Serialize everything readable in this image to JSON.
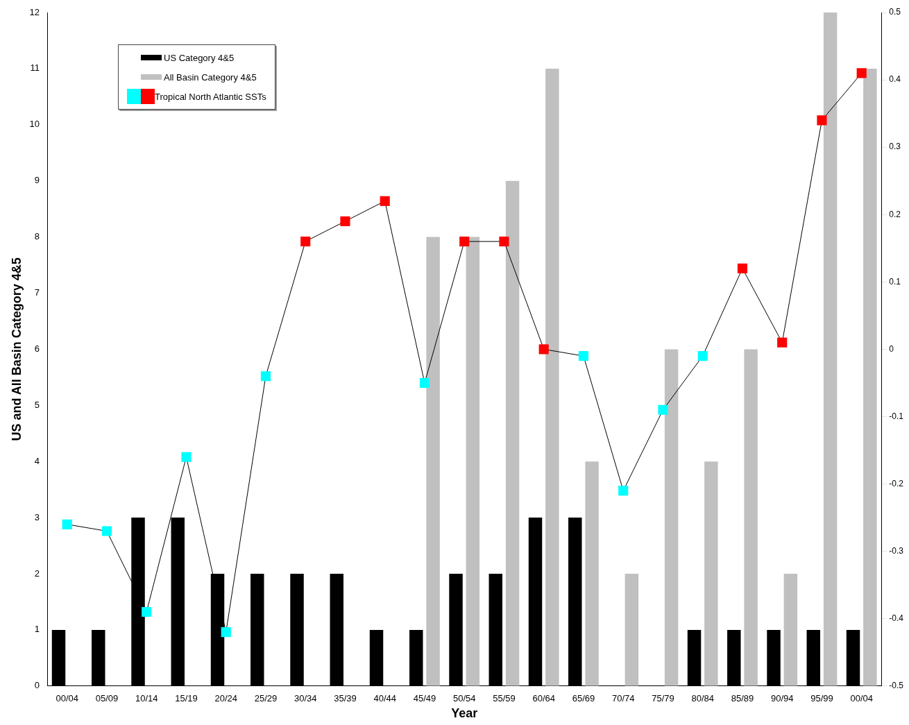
{
  "chart_data": {
    "type": "bar",
    "categories": [
      "00/04",
      "05/09",
      "10/14",
      "15/19",
      "20/24",
      "25/29",
      "30/34",
      "35/39",
      "40/44",
      "45/49",
      "50/54",
      "55/59",
      "60/64",
      "65/69",
      "70/74",
      "75/79",
      "80/84",
      "85/89",
      "90/94",
      "95/99",
      "00/04"
    ],
    "series": [
      {
        "name": "US Category 4&5",
        "color": "#000000",
        "values": [
          1,
          1,
          3,
          3,
          2,
          2,
          2,
          2,
          1,
          1,
          2,
          2,
          3,
          3,
          0,
          0,
          1,
          1,
          1,
          1,
          1
        ]
      },
      {
        "name": "All Basin Category 4&5",
        "color": "#c0c0c0",
        "values": [
          null,
          null,
          null,
          null,
          null,
          null,
          null,
          null,
          null,
          8,
          8,
          9,
          11,
          4,
          2,
          6,
          4,
          6,
          2,
          12,
          11
        ]
      },
      {
        "name": "Tropical North Atlantic SSTs",
        "type": "line",
        "axis": "y2",
        "color": "#000000",
        "marker": "square",
        "colors": [
          "#00ffff",
          "#00ffff",
          "#00ffff",
          "#00ffff",
          "#00ffff",
          "#00ffff",
          "#ff0000",
          "#ff0000",
          "#ff0000",
          "#00ffff",
          "#ff0000",
          "#ff0000",
          "#ff0000",
          "#00ffff",
          "#00ffff",
          "#00ffff",
          "#00ffff",
          "#ff0000",
          "#ff0000",
          "#ff0000",
          "#ff0000"
        ],
        "values": [
          -0.26,
          -0.27,
          -0.39,
          -0.16,
          -0.42,
          -0.04,
          0.16,
          0.19,
          0.22,
          -0.05,
          0.16,
          0.16,
          0,
          -0.01,
          -0.21,
          -0.09,
          -0.01,
          0.12,
          0.01,
          0.34,
          0.41
        ]
      }
    ],
    "xlabel": "Year",
    "ylabel": "US and All Basin Category 4&5",
    "ylim": [
      0,
      12
    ],
    "yticks": [
      0,
      1,
      2,
      3,
      4,
      5,
      6,
      7,
      8,
      9,
      10,
      11,
      12
    ],
    "y2lim": [
      -0.5,
      0.5
    ],
    "y2ticks": [
      -0.5,
      -0.4,
      -0.3,
      -0.2,
      -0.1,
      0,
      0.1,
      0.2,
      0.3,
      0.4,
      0.5
    ],
    "legend": "top left",
    "grid": false
  }
}
